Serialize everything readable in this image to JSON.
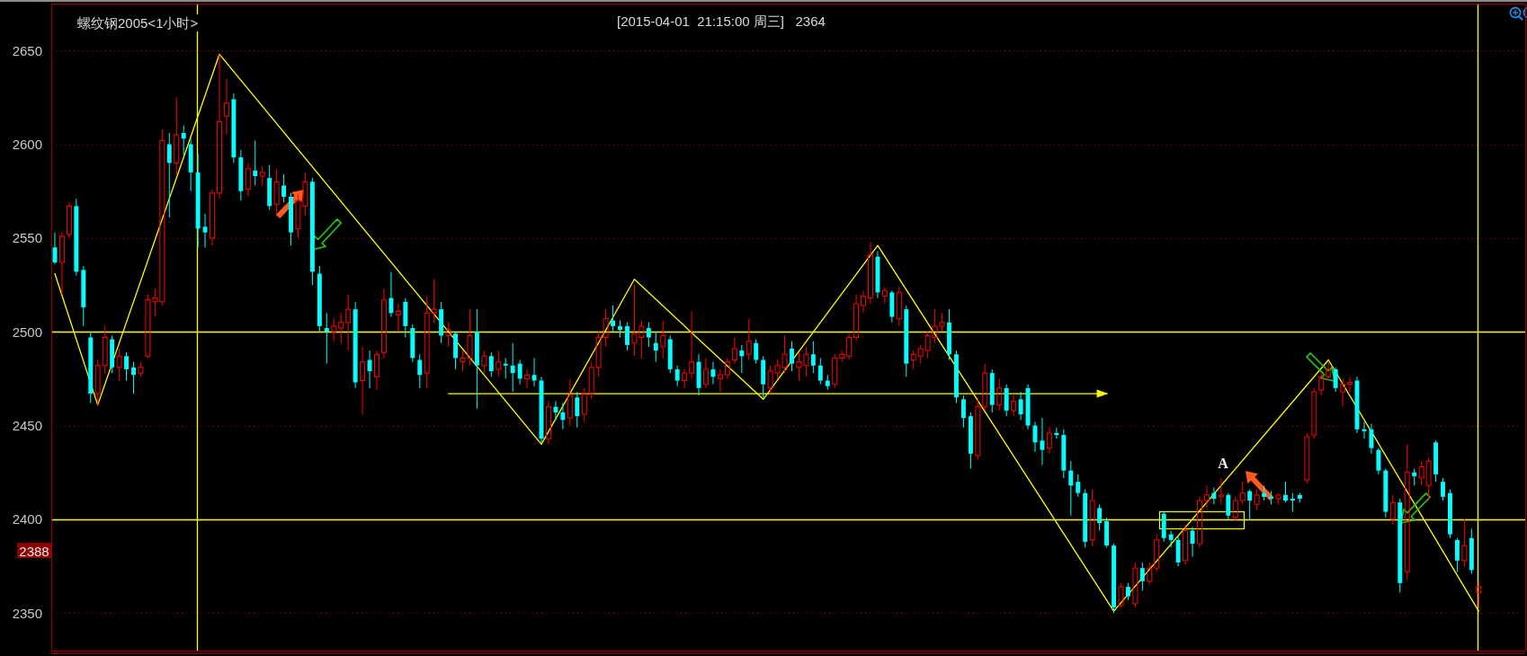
{
  "chart_data": {
    "type": "candlestick",
    "title": "螺纹钢2005<1小时>",
    "subtitle": "[2015-04-01  21:15:00 周三]   2364",
    "categories": [
      null,
      null,
      null,
      null,
      null,
      null,
      null,
      null,
      null,
      null,
      null,
      null,
      null,
      null,
      null,
      null,
      null,
      null,
      null,
      null,
      null,
      null,
      null,
      null,
      null,
      null,
      null,
      null,
      null,
      null,
      null,
      null,
      null,
      null,
      null,
      null,
      null,
      null,
      null,
      null,
      null,
      null,
      null,
      null,
      null,
      null,
      null,
      null,
      null,
      null,
      null,
      null,
      null,
      null,
      null,
      null,
      null,
      null,
      null,
      null,
      null,
      null,
      null,
      null,
      null,
      null,
      null,
      null,
      null,
      null,
      null,
      null,
      null,
      null,
      null,
      null,
      null,
      null,
      null,
      null,
      null,
      null,
      null,
      null,
      null,
      null,
      null,
      null,
      null,
      null,
      null,
      null,
      null,
      null,
      null,
      null,
      null,
      null,
      null,
      null,
      null,
      null,
      null,
      null,
      null,
      null,
      null,
      null,
      null,
      null,
      null,
      null,
      null,
      null,
      null,
      null,
      null,
      null,
      null,
      null,
      null,
      null,
      null,
      null,
      null,
      null,
      null,
      null,
      null,
      null,
      null,
      null,
      null,
      null,
      null,
      null,
      null,
      null,
      null,
      null,
      null,
      null,
      null,
      null,
      null,
      null,
      null,
      null,
      null,
      null,
      null,
      null,
      null,
      null,
      null,
      null,
      null,
      null,
      null,
      null,
      null,
      null,
      null,
      null,
      null,
      null,
      null,
      null,
      null,
      null,
      null,
      null,
      null,
      null,
      null,
      null,
      null,
      null,
      null,
      null,
      null,
      null,
      null,
      null,
      null,
      null,
      null,
      null,
      null,
      null,
      null,
      null,
      null,
      null,
      null,
      null,
      null,
      null,
      null,
      null,
      null,
      null,
      null,
      null,
      null,
      null
    ],
    "ohlc": [
      [
        2545,
        2553,
        2536,
        2537
      ],
      [
        2537,
        2553,
        2520,
        2551
      ],
      [
        2552,
        2569,
        2550,
        2567
      ],
      [
        2567,
        2571,
        2530,
        2532
      ],
      [
        2533,
        2535,
        2503,
        2513
      ],
      [
        2497,
        2500,
        2462,
        2467
      ],
      [
        2467,
        2485,
        2461,
        2482
      ],
      [
        2482,
        2503,
        2478,
        2497
      ],
      [
        2496,
        2498,
        2478,
        2481
      ],
      [
        2481,
        2491,
        2474,
        2487
      ],
      [
        2487,
        2489,
        2474,
        2480
      ],
      [
        2481,
        2484,
        2467,
        2477
      ],
      [
        2478,
        2484,
        2476,
        2481
      ],
      [
        2487,
        2520,
        2486,
        2517
      ],
      [
        2516,
        2523,
        2508,
        2518
      ],
      [
        2516,
        2608,
        2514,
        2602
      ],
      [
        2600,
        2606,
        2561,
        2590
      ],
      [
        2590,
        2625,
        2583,
        2605
      ],
      [
        2606,
        2610,
        2594,
        2603
      ],
      [
        2600,
        2603,
        2575,
        2585
      ],
      [
        2585,
        2595,
        2545,
        2555
      ],
      [
        2556,
        2563,
        2545,
        2553
      ],
      [
        2550,
        2576,
        2546,
        2574
      ],
      [
        2574,
        2648,
        2571,
        2612
      ],
      [
        2615,
        2635,
        2605,
        2622
      ],
      [
        2624,
        2627,
        2590,
        2593
      ],
      [
        2593,
        2597,
        2570,
        2575
      ],
      [
        2576,
        2590,
        2572,
        2587
      ],
      [
        2586,
        2602,
        2578,
        2583
      ],
      [
        2583,
        2588,
        2578,
        2585
      ],
      [
        2582,
        2589,
        2565,
        2567
      ],
      [
        2568,
        2587,
        2563,
        2580
      ],
      [
        2578,
        2584,
        2569,
        2572
      ],
      [
        2572,
        2574,
        2546,
        2553
      ],
      [
        2555,
        2573,
        2550,
        2570
      ],
      [
        2567,
        2585,
        2562,
        2580
      ],
      [
        2580,
        2582,
        2525,
        2532
      ],
      [
        2531,
        2535,
        2500,
        2503
      ],
      [
        2502,
        2510,
        2483,
        2500
      ],
      [
        2500,
        2507,
        2495,
        2503
      ],
      [
        2502,
        2510,
        2494,
        2505
      ],
      [
        2505,
        2520,
        2490,
        2512
      ],
      [
        2512,
        2516,
        2470,
        2473
      ],
      [
        2474,
        2492,
        2456,
        2484
      ],
      [
        2485,
        2490,
        2470,
        2479
      ],
      [
        2476,
        2490,
        2469,
        2488
      ],
      [
        2489,
        2523,
        2486,
        2517
      ],
      [
        2518,
        2532,
        2508,
        2510
      ],
      [
        2509,
        2515,
        2500,
        2511
      ],
      [
        2516,
        2518,
        2497,
        2503
      ],
      [
        2502,
        2504,
        2484,
        2486
      ],
      [
        2485,
        2488,
        2470,
        2477
      ],
      [
        2478,
        2519,
        2470,
        2510
      ],
      [
        2510,
        2528,
        2505,
        2512
      ],
      [
        2512,
        2516,
        2494,
        2498
      ],
      [
        2498,
        2505,
        2492,
        2501
      ],
      [
        2499,
        2500,
        2480,
        2486
      ],
      [
        2484,
        2490,
        2479,
        2486
      ],
      [
        2486,
        2512,
        2482,
        2498
      ],
      [
        2500,
        2512,
        2459,
        2482
      ],
      [
        2482,
        2490,
        2478,
        2487
      ],
      [
        2487,
        2489,
        2476,
        2479
      ],
      [
        2480,
        2490,
        2476,
        2484
      ],
      [
        2483,
        2486,
        2475,
        2482
      ],
      [
        2482,
        2494,
        2468,
        2478
      ],
      [
        2483,
        2485,
        2472,
        2475
      ],
      [
        2475,
        2480,
        2470,
        2477
      ],
      [
        2477,
        2486,
        2471,
        2474
      ],
      [
        2474,
        2476,
        2440,
        2443
      ],
      [
        2443,
        2463,
        2440,
        2460
      ],
      [
        2460,
        2463,
        2453,
        2457
      ],
      [
        2457,
        2462,
        2448,
        2453
      ],
      [
        2454,
        2475,
        2450,
        2466
      ],
      [
        2465,
        2468,
        2449,
        2455
      ],
      [
        2456,
        2470,
        2452,
        2467
      ],
      [
        2467,
        2484,
        2464,
        2481
      ],
      [
        2481,
        2500,
        2476,
        2497
      ],
      [
        2497,
        2512,
        2492,
        2507
      ],
      [
        2506,
        2514,
        2500,
        2503
      ],
      [
        2503,
        2506,
        2497,
        2501
      ],
      [
        2503,
        2505,
        2490,
        2493
      ],
      [
        2494,
        2525,
        2487,
        2499
      ],
      [
        2497,
        2506,
        2486,
        2503
      ],
      [
        2502,
        2505,
        2492,
        2497
      ],
      [
        2494,
        2500,
        2484,
        2490
      ],
      [
        2492,
        2506,
        2486,
        2498
      ],
      [
        2496,
        2498,
        2478,
        2480
      ],
      [
        2480,
        2482,
        2471,
        2474
      ],
      [
        2474,
        2480,
        2470,
        2478
      ],
      [
        2478,
        2511,
        2475,
        2484
      ],
      [
        2484,
        2488,
        2466,
        2470
      ],
      [
        2472,
        2486,
        2470,
        2480
      ],
      [
        2480,
        2484,
        2472,
        2476
      ],
      [
        2475,
        2480,
        2468,
        2477
      ],
      [
        2477,
        2486,
        2475,
        2484
      ],
      [
        2485,
        2497,
        2483,
        2491
      ],
      [
        2490,
        2493,
        2478,
        2487
      ],
      [
        2488,
        2507,
        2485,
        2495
      ],
      [
        2494,
        2496,
        2483,
        2485
      ],
      [
        2485,
        2487,
        2465,
        2472
      ],
      [
        2470,
        2482,
        2467,
        2479
      ],
      [
        2478,
        2485,
        2475,
        2482
      ],
      [
        2481,
        2498,
        2478,
        2488
      ],
      [
        2491,
        2495,
        2479,
        2483
      ],
      [
        2481,
        2489,
        2474,
        2484
      ],
      [
        2482,
        2492,
        2476,
        2488
      ],
      [
        2488,
        2495,
        2478,
        2482
      ],
      [
        2482,
        2486,
        2472,
        2474
      ],
      [
        2474,
        2477,
        2469,
        2471
      ],
      [
        2472,
        2488,
        2470,
        2486
      ],
      [
        2486,
        2490,
        2484,
        2488
      ],
      [
        2487,
        2499,
        2485,
        2497
      ],
      [
        2497,
        2520,
        2495,
        2515
      ],
      [
        2514,
        2522,
        2510,
        2519
      ],
      [
        2518,
        2548,
        2515,
        2541
      ],
      [
        2540,
        2543,
        2518,
        2521
      ],
      [
        2519,
        2524,
        2515,
        2522
      ],
      [
        2521,
        2522,
        2505,
        2508
      ],
      [
        2507,
        2524,
        2503,
        2521
      ],
      [
        2512,
        2514,
        2476,
        2483
      ],
      [
        2485,
        2490,
        2480,
        2488
      ],
      [
        2487,
        2493,
        2483,
        2491
      ],
      [
        2490,
        2500,
        2486,
        2498
      ],
      [
        2497,
        2512,
        2494,
        2503
      ],
      [
        2503,
        2510,
        2500,
        2505
      ],
      [
        2505,
        2512,
        2485,
        2488
      ],
      [
        2488,
        2490,
        2462,
        2465
      ],
      [
        2464,
        2466,
        2449,
        2454
      ],
      [
        2455,
        2457,
        2427,
        2435
      ],
      [
        2434,
        2465,
        2432,
        2460
      ],
      [
        2460,
        2483,
        2458,
        2478
      ],
      [
        2478,
        2480,
        2457,
        2461
      ],
      [
        2461,
        2475,
        2458,
        2470
      ],
      [
        2470,
        2472,
        2455,
        2458
      ],
      [
        2458,
        2466,
        2455,
        2463
      ],
      [
        2464,
        2468,
        2453,
        2456
      ],
      [
        2470,
        2472,
        2448,
        2450
      ],
      [
        2450,
        2452,
        2436,
        2441
      ],
      [
        2442,
        2454,
        2429,
        2437
      ],
      [
        2438,
        2449,
        2435,
        2446
      ],
      [
        2446,
        2449,
        2443,
        2445
      ],
      [
        2445,
        2448,
        2422,
        2426
      ],
      [
        2426,
        2431,
        2402,
        2418
      ],
      [
        2420,
        2424,
        2412,
        2414
      ],
      [
        2414,
        2416,
        2385,
        2388
      ],
      [
        2389,
        2416,
        2386,
        2410
      ],
      [
        2406,
        2408,
        2394,
        2398
      ],
      [
        2399,
        2401,
        2385,
        2386
      ],
      [
        2386,
        2387,
        2350,
        2353
      ],
      [
        2354,
        2366,
        2353,
        2364
      ],
      [
        2364,
        2366,
        2357,
        2359
      ],
      [
        2355,
        2377,
        2353,
        2374
      ],
      [
        2374,
        2377,
        2362,
        2367
      ],
      [
        2367,
        2377,
        2365,
        2374
      ],
      [
        2374,
        2392,
        2372,
        2389
      ],
      [
        2403,
        2404,
        2388,
        2390
      ],
      [
        2392,
        2394,
        2385,
        2389
      ],
      [
        2389,
        2391,
        2375,
        2377
      ],
      [
        2378,
        2397,
        2376,
        2394
      ],
      [
        2394,
        2396,
        2380,
        2387
      ],
      [
        2387,
        2412,
        2385,
        2410
      ],
      [
        2410,
        2418,
        2406,
        2413
      ],
      [
        2414,
        2417,
        2408,
        2411
      ],
      [
        2412,
        2422,
        2408,
        2413
      ],
      [
        2413,
        2414,
        2400,
        2402
      ],
      [
        2401,
        2412,
        2399,
        2410
      ],
      [
        2410,
        2420,
        2408,
        2414
      ],
      [
        2415,
        2416,
        2400,
        2410
      ],
      [
        2408,
        2416,
        2405,
        2413
      ],
      [
        2414,
        2418,
        2410,
        2412
      ],
      [
        2412,
        2415,
        2408,
        2411
      ],
      [
        2411,
        2414,
        2408,
        2413
      ],
      [
        2413,
        2420,
        2409,
        2410
      ],
      [
        2411,
        2414,
        2404,
        2410
      ],
      [
        2413,
        2414,
        2409,
        2411
      ],
      [
        2421,
        2446,
        2419,
        2444
      ],
      [
        2445,
        2470,
        2443,
        2468
      ],
      [
        2469,
        2478,
        2466,
        2476
      ],
      [
        2476,
        2484,
        2474,
        2480
      ],
      [
        2480,
        2481,
        2468,
        2470
      ],
      [
        2468,
        2475,
        2460,
        2472
      ],
      [
        2472,
        2476,
        2468,
        2473
      ],
      [
        2474,
        2476,
        2446,
        2448
      ],
      [
        2448,
        2452,
        2443,
        2447
      ],
      [
        2448,
        2451,
        2435,
        2438
      ],
      [
        2437,
        2438,
        2424,
        2426
      ],
      [
        2426,
        2427,
        2401,
        2404
      ],
      [
        2400,
        2413,
        2397,
        2409
      ],
      [
        2409,
        2411,
        2361,
        2366
      ],
      [
        2372,
        2440,
        2368,
        2425
      ],
      [
        2425,
        2427,
        2418,
        2423
      ],
      [
        2422,
        2431,
        2418,
        2428
      ],
      [
        2418,
        2433,
        2410,
        2431
      ],
      [
        2441,
        2442,
        2420,
        2424
      ],
      [
        2420,
        2422,
        2410,
        2412
      ],
      [
        2414,
        2416,
        2390,
        2392
      ],
      [
        2389,
        2390,
        2372,
        2378
      ],
      [
        2378,
        2400,
        2375,
        2386
      ],
      [
        2390,
        2395,
        2371,
        2373
      ],
      [
        2361,
        2367,
        2353,
        2364
      ],
      null,
      null,
      null,
      null,
      null,
      null
    ],
    "colors": [
      "#00ffff",
      "#ff0000",
      "#ff0000",
      "#00ffff",
      "#00ffff",
      "#00ffff",
      "#ff0000",
      "#ff0000",
      "#00ffff",
      "#ff0000",
      "#00ffff",
      "#00ffff",
      "#ff0000",
      "#ff0000",
      "#ff0000",
      "#ff0000",
      "#00ffff",
      "#ff0000",
      "#00ffff",
      "#00ffff",
      "#00ffff",
      "#00ffff",
      "#ff0000",
      "#ff0000",
      "#ff0000",
      "#00ffff",
      "#00ffff",
      "#ff0000",
      "#00ffff",
      "#ff0000",
      "#00ffff",
      "#ff0000",
      "#00ffff",
      "#00ffff",
      "#ff0000",
      "#ff0000",
      "#00ffff",
      "#00ffff",
      "#00ffff",
      "#ff0000",
      "#ff0000",
      "#ff0000",
      "#00ffff",
      "#ff0000",
      "#00ffff",
      "#ff0000",
      "#ff0000",
      "#00ffff",
      "#ff0000",
      "#00ffff",
      "#00ffff",
      "#00ffff",
      "#ff0000",
      "#ff0000",
      "#00ffff",
      "#ff0000",
      "#00ffff",
      "#ff0000",
      "#ff0000",
      "#00ffff",
      "#ff0000",
      "#00ffff",
      "#ff0000",
      "#00ffff",
      "#00ffff",
      "#00ffff",
      "#ff0000",
      "#00ffff",
      "#00ffff",
      "#ff0000",
      "#00ffff",
      "#00ffff",
      "#ff0000",
      "#00ffff",
      "#ff0000",
      "#ff0000",
      "#ff0000",
      "#ff0000",
      "#00ffff",
      "#00ffff",
      "#00ffff",
      "#ff0000",
      "#ff0000",
      "#00ffff",
      "#00ffff",
      "#ff0000",
      "#00ffff",
      "#00ffff",
      "#ff0000",
      "#ff0000",
      "#00ffff",
      "#ff0000",
      "#00ffff",
      "#ff0000",
      "#ff0000",
      "#ff0000",
      "#00ffff",
      "#ff0000",
      "#00ffff",
      "#00ffff",
      "#ff0000",
      "#ff0000",
      "#ff0000",
      "#00ffff",
      "#ff0000",
      "#ff0000",
      "#00ffff",
      "#00ffff",
      "#00ffff",
      "#ff0000",
      "#ff0000",
      "#ff0000",
      "#ff0000",
      "#ff0000",
      "#ff0000",
      "#00ffff",
      "#ff0000",
      "#00ffff",
      "#ff0000",
      "#00ffff",
      "#ff0000",
      "#ff0000",
      "#ff0000",
      "#ff0000",
      "#ff0000",
      "#00ffff",
      "#00ffff",
      "#00ffff",
      "#00ffff",
      "#ff0000",
      "#ff0000",
      "#00ffff",
      "#ff0000",
      "#00ffff",
      "#ff0000",
      "#00ffff",
      "#00ffff",
      "#00ffff",
      "#00ffff",
      "#ff0000",
      "#00ffff",
      "#00ffff",
      "#00ffff",
      "#00ffff",
      "#00ffff",
      "#ff0000",
      "#00ffff",
      "#00ffff",
      "#00ffff",
      "#ff0000",
      "#00ffff",
      "#ff0000",
      "#00ffff",
      "#ff0000",
      "#ff0000",
      "#00ffff",
      "#00ffff",
      "#00ffff",
      "#ff0000",
      "#00ffff",
      "#ff0000",
      "#ff0000",
      "#00ffff",
      "#ff0000",
      "#00ffff",
      "#ff0000",
      "#ff0000",
      "#00ffff",
      "#ff0000",
      "#00ffff",
      "#00ffff",
      "#ff0000",
      "#00ffff",
      "#00ffff",
      "#00ffff",
      "#ff0000",
      "#ff0000",
      "#ff0000",
      "#ff0000",
      "#00ffff",
      "#ff0000",
      "#ff0000",
      "#00ffff",
      "#00ffff",
      "#00ffff",
      "#00ffff",
      "#00ffff",
      "#ff0000",
      "#00ffff",
      "#ff0000",
      "#00ffff",
      "#ff0000",
      "#ff0000",
      "#00ffff",
      "#00ffff",
      "#00ffff",
      "#00ffff",
      "#ff0000",
      "#00ffff",
      "#ff0000",
      null,
      null,
      null,
      null,
      null,
      null
    ],
    "series": [
      {
        "type": "line",
        "color": "#ffff00",
        "values": [
          2531,
          null,
          null,
          null,
          null,
          null,
          2461,
          null,
          null,
          null,
          null,
          null,
          null,
          null,
          null,
          null,
          null,
          null,
          null,
          null,
          null,
          null,
          null,
          2648,
          null,
          null,
          null,
          null,
          null,
          null,
          null,
          null,
          null,
          null,
          null,
          null,
          null,
          null,
          null,
          null,
          null,
          null,
          null,
          null,
          null,
          null,
          null,
          null,
          null,
          null,
          null,
          null,
          null,
          null,
          null,
          null,
          null,
          null,
          null,
          null,
          null,
          null,
          null,
          null,
          null,
          null,
          null,
          null,
          2440,
          null,
          null,
          null,
          null,
          null,
          null,
          null,
          null,
          null,
          null,
          null,
          null,
          2528,
          null,
          null,
          null,
          null,
          null,
          null,
          null,
          null,
          null,
          null,
          null,
          null,
          null,
          null,
          null,
          null,
          null,
          2464,
          null,
          null,
          null,
          null,
          null,
          null,
          null,
          null,
          null,
          null,
          null,
          null,
          null,
          null,
          null,
          2546,
          null,
          null,
          null,
          null,
          null,
          null,
          null,
          null,
          null,
          null,
          null,
          null,
          null,
          null,
          null,
          null,
          null,
          null,
          null,
          null,
          null,
          null,
          null,
          null,
          null,
          null,
          null,
          null,
          null,
          null,
          null,
          null,
          2351,
          null,
          null,
          null,
          null,
          null,
          null,
          null,
          null,
          null,
          null,
          null,
          null,
          null,
          null,
          null,
          null,
          null,
          null,
          null,
          null,
          null,
          null,
          null,
          null,
          null,
          null,
          null,
          null,
          null,
          2485,
          null,
          null,
          null,
          null,
          null,
          null,
          null,
          null,
          null,
          null,
          null,
          null,
          null,
          null,
          null,
          null,
          null,
          null,
          null,
          null,
          2351,
          null,
          null,
          null,
          null,
          null,
          null
        ]
      },
      {
        "type": "line",
        "color": "#ffff00",
        "values": [
          null,
          null,
          null,
          null,
          null,
          null,
          null,
          null,
          null,
          null,
          null,
          null,
          null,
          null,
          null,
          null,
          null,
          null,
          null,
          null,
          null,
          null,
          null,
          null,
          null,
          null,
          null,
          null,
          null,
          null,
          null,
          null,
          null,
          null,
          null,
          null,
          null,
          null,
          null,
          null,
          null,
          null,
          null,
          null,
          null,
          null,
          null,
          null,
          null,
          null,
          null,
          null,
          null,
          null,
          null,
          2467,
          null,
          null,
          null,
          null,
          null,
          null,
          null,
          null,
          null,
          null,
          null,
          null,
          null,
          null,
          null,
          null,
          null,
          null,
          null,
          null,
          null,
          null,
          null,
          null,
          null,
          null,
          null,
          null,
          null,
          null,
          null,
          null,
          null,
          null,
          null,
          null,
          null,
          null,
          null,
          null,
          null,
          null,
          null,
          null,
          null,
          null,
          null,
          null,
          null,
          null,
          null,
          null,
          null,
          null,
          null,
          null,
          null,
          null,
          null,
          null,
          null,
          null,
          null,
          null,
          null,
          null,
          null,
          null,
          null,
          null,
          null,
          null,
          null,
          null,
          null,
          null,
          null,
          null,
          null,
          null,
          null,
          null,
          null,
          null,
          null,
          null,
          null,
          null,
          null,
          null,
          null,
          2467,
          null,
          null,
          null,
          null,
          null,
          null,
          null,
          null,
          null,
          null,
          null,
          null,
          null,
          null,
          null,
          null,
          null,
          null,
          null,
          null,
          null,
          null,
          null,
          null,
          null,
          null,
          null,
          null,
          null,
          null,
          null,
          null,
          null,
          null,
          null,
          null,
          null,
          null,
          null,
          null,
          null,
          null,
          null,
          null,
          null,
          null,
          null,
          null,
          null,
          null,
          null,
          null,
          null,
          null,
          null,
          null,
          null,
          null
        ]
      }
    ],
    "ylim": [
      2330,
      2675
    ],
    "yticks": [
      2350,
      2400,
      2450,
      2500,
      2550,
      2600,
      2650
    ],
    "grid": "y",
    "tick_labels": "y",
    "ref_lines": [
      {
        "axis": "y",
        "value": 2500,
        "color": "#ffff00"
      },
      {
        "axis": "y",
        "value": 2400,
        "color": "#ffff00"
      }
    ],
    "annotations": [
      "A",
      "2388"
    ]
  }
}
